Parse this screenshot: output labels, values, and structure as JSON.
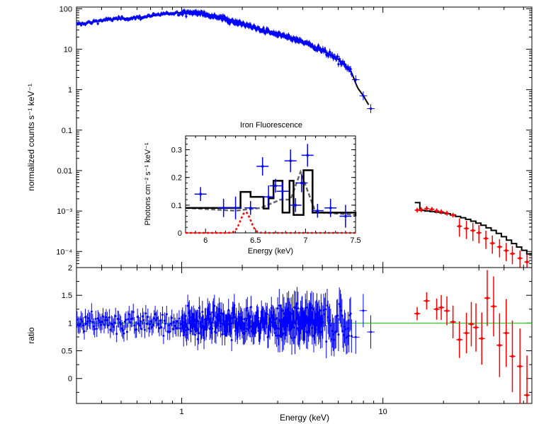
{
  "colors": {
    "xmm": "#0000ff",
    "hxd": "#ff0000",
    "model": "#000000",
    "unity": "#00cc00",
    "continuum": "#666666",
    "gaussian": "#ff0000"
  },
  "chart_data": [
    {
      "id": "spectrum",
      "type": "scatter",
      "xlabel": "",
      "ylabel": "normalized counts s⁻¹ keV⁻¹",
      "xscale": "log",
      "yscale": "log",
      "xlim": [
        0.3,
        55
      ],
      "ylim": [
        4e-05,
        110
      ],
      "xticks": [
        "1",
        "10"
      ],
      "yticks": [
        "100",
        "10",
        "1",
        "0.1",
        "0.01",
        "10⁻³",
        "10⁻⁴"
      ],
      "series": [
        {
          "color": "blue",
          "note_x": [
            0.3,
            8.8
          ]
        },
        {
          "color": "red",
          "x": [
            14.8,
            15.5,
            16.5,
            17.5,
            18.5,
            19.5,
            20.8,
            22.3,
            24,
            26,
            28,
            30,
            32.5,
            35,
            38,
            41,
            44,
            48,
            52
          ],
          "y": [
            0.00105,
            0.00108,
            0.00115,
            0.0011,
            0.00101,
            0.00096,
            0.00088,
            0.00079,
            0.00042,
            0.00037,
            0.00033,
            0.00029,
            0.00021,
            0.00016,
            0.00013,
            0.000105,
            8.8e-05,
            6.8e-05,
            5.5e-05
          ]
        }
      ],
      "model": {
        "x": [
          0.3,
          0.35,
          0.4,
          0.5,
          0.6,
          0.7,
          0.8,
          0.9,
          1.0,
          1.1,
          1.2,
          1.4,
          1.6,
          2.0,
          2.5,
          3.0,
          4.0,
          5.0,
          6.0,
          6.5,
          7.0,
          7.3,
          7.5,
          8.0,
          8.5,
          15,
          20,
          25,
          30,
          35,
          40,
          45,
          50,
          55
        ],
        "y": [
          40,
          46,
          52,
          57,
          60,
          66,
          72,
          78,
          80,
          80,
          78,
          70,
          58,
          42,
          30,
          23,
          15,
          9.5,
          5.6,
          4.0,
          2.6,
          1.5,
          1.1,
          0.7,
          0.42,
          0.00105,
          0.00088,
          0.00066,
          0.00047,
          0.00032,
          0.00021,
          0.00014,
          0.0001,
          7e-05
        ]
      }
    },
    {
      "id": "ratio",
      "type": "scatter",
      "xlabel": "Energy (keV)",
      "ylabel": "ratio",
      "xscale": "log",
      "xlim": [
        0.3,
        55
      ],
      "ylim": [
        -0.45,
        2.0
      ],
      "xticks": [
        "1",
        "10"
      ],
      "yticks": [
        "2",
        "1.5",
        "1",
        "0.5",
        "0"
      ],
      "reference_line": 1,
      "series": [
        {
          "color": "blue",
          "note_x": [
            0.3,
            8.8
          ]
        },
        {
          "color": "red",
          "x": [
            14.8,
            16.5,
            18.5,
            19.5,
            20.8,
            22.3,
            24,
            26,
            27.5,
            29,
            31,
            33,
            35.5,
            38,
            41,
            44,
            48,
            52
          ],
          "y": [
            1.17,
            1.4,
            1.25,
            1.28,
            1.22,
            1.02,
            0.7,
            0.82,
            0.98,
            0.92,
            0.72,
            1.45,
            1.3,
            0.6,
            0.82,
            0.4,
            0.22,
            -0.3
          ]
        }
      ]
    },
    {
      "id": "inset",
      "type": "line",
      "title": "Iron Fluorescence",
      "xlabel": "Energy (keV)",
      "ylabel": "Photons cm⁻² s⁻¹ keV⁻¹",
      "xlim": [
        5.8,
        7.5
      ],
      "ylim": [
        0,
        0.35
      ],
      "xticks": [
        "6",
        "6.5",
        "7",
        "7.5"
      ],
      "yticks": [
        "0",
        "0.1",
        "0.2",
        "0.3"
      ],
      "data_x": [
        5.95,
        6.18,
        6.3,
        6.45,
        6.57,
        6.63,
        6.7,
        6.77,
        6.85,
        6.9,
        6.96,
        7.02,
        7.12,
        7.25,
        7.4
      ],
      "data_y": [
        0.14,
        0.09,
        0.09,
        0.09,
        0.24,
        0.13,
        0.17,
        0.15,
        0.26,
        0.1,
        0.18,
        0.28,
        0.08,
        0.09,
        0.06
      ],
      "model_steps_x": [
        5.8,
        6.35,
        6.45,
        6.58,
        6.63,
        6.68,
        6.77,
        6.84,
        6.88,
        6.98,
        7.07,
        7.5
      ],
      "model_steps_y": [
        0.09,
        0.148,
        0.13,
        0.088,
        0.125,
        0.188,
        0.073,
        0.188,
        0.065,
        0.226,
        0.073,
        0.06
      ],
      "continuum_x": [
        5.8,
        6.3,
        6.55,
        6.75,
        6.85,
        6.95,
        7.1,
        7.5
      ],
      "continuum_y": [
        0.09,
        0.08,
        0.09,
        0.12,
        0.12,
        0.22,
        0.075,
        0.065
      ],
      "gaussian_center": 6.4,
      "gaussian_sigma": 0.05,
      "gaussian_amp": 0.075
    }
  ]
}
